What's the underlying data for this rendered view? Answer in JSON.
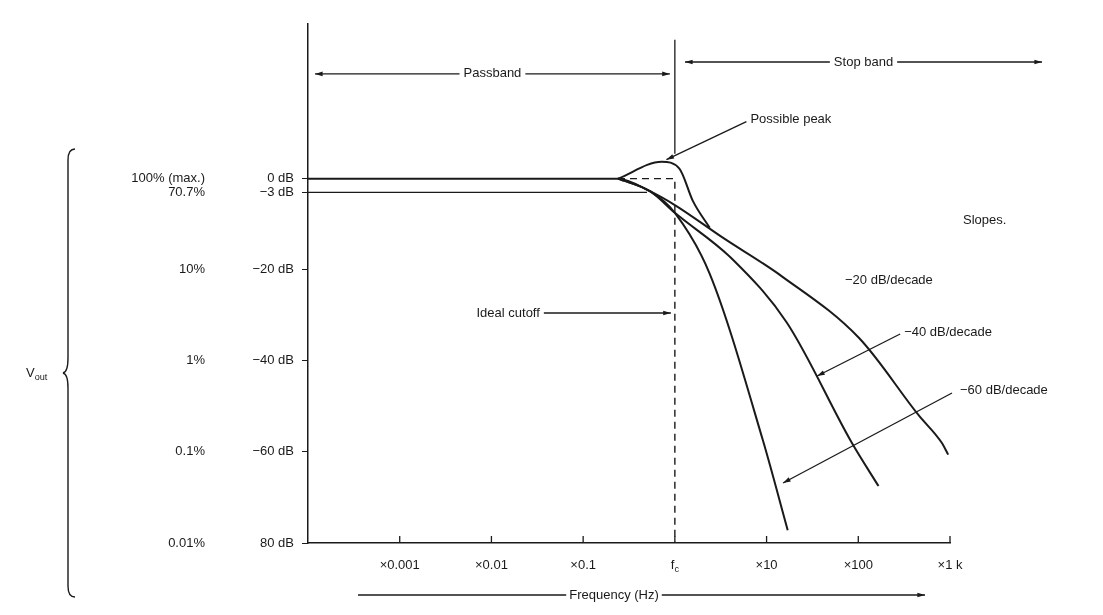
{
  "chart_data": {
    "type": "line",
    "xlabel": "Frequency (Hz)",
    "log": "x",
    "grid": false,
    "legend": false,
    "marker": "none",
    "xlim": [
      0.0001,
      1000
    ],
    "xticks": [
      {
        "value": 0.001,
        "label": "×0.001"
      },
      {
        "value": 0.01,
        "label": "×0.01"
      },
      {
        "value": 0.1,
        "label": "×0.1"
      },
      {
        "value": 1,
        "label": "f$_{c}$"
      },
      {
        "value": 10,
        "label": "×10"
      },
      {
        "value": 100,
        "label": "×100"
      },
      {
        "value": 1000,
        "label": "×1 k"
      }
    ],
    "ylim": [
      -80,
      34
    ],
    "yticks": [
      {
        "value": 0,
        "label": "0 dB"
      },
      {
        "value": -3,
        "label": "−3 dB"
      },
      {
        "value": -20,
        "label": "−20 dB"
      },
      {
        "value": -40,
        "label": "−40 dB"
      },
      {
        "value": -60,
        "label": "−60 dB"
      },
      {
        "value": -80,
        "label": "80 dB"
      }
    ],
    "series": [
      {
        "color": "#1a1a1a",
        "x": [
          0.0001,
          0.24,
          0.54,
          1,
          3.3,
          14.8,
          102,
          457,
          813,
          955
        ],
        "values": [
          0,
          0,
          -2.8,
          -5.8,
          -12.9,
          -21.5,
          -35,
          -52,
          -58,
          -60.6
        ]
      },
      {
        "color": "#1a1a1a",
        "x": [
          0.24,
          0.72,
          1.12,
          1.58,
          2.4
        ],
        "values": [
          0,
          3.7,
          2.2,
          -5,
          -10.8
        ]
      },
      {
        "color": "#1a1a1a",
        "x": [
          0.24,
          0.54,
          1,
          4.3,
          16.6,
          85,
          166
        ],
        "values": [
          0,
          -2.8,
          -7.5,
          -17.8,
          -31.6,
          -58,
          -67.5
        ]
      },
      {
        "color": "#1a1a1a",
        "x": [
          0.24,
          0.54,
          1,
          2.4,
          9.1,
          17
        ],
        "values": [
          0,
          -2.8,
          -7.5,
          -20.9,
          -57.4,
          -77.2
        ]
      },
      {
        "color": "#1a1a1a",
        "line_style": "dashed",
        "x": [
          0.24,
          1,
          1
        ],
        "values": [
          0,
          0,
          -80
        ]
      }
    ],
    "ref_lines": [
      {
        "axis": "y",
        "value": -3,
        "color": "#1a1a1a"
      },
      {
        "axis": "x",
        "value": 1,
        "color": "#1a1a1a"
      }
    ],
    "annotations": [
      {
        "text": "Passband",
        "x": 1,
        "y": 23
      },
      "Stop band",
      {
        "text": "Possible peak",
        "x": 0.75,
        "y": 3.5
      },
      {
        "text": "Ideal cutoff",
        "x": 1,
        "y": -29.5
      },
      "Slopes.",
      "−20 dB/decade",
      {
        "text": "−40 dB/decade",
        "x": 33,
        "y": -44
      },
      "−60 dB/decade",
      "100% (max.)",
      "70.7%",
      "10%",
      "1%",
      "0.1%",
      "0.01%",
      "V$_{out}$"
    ]
  }
}
